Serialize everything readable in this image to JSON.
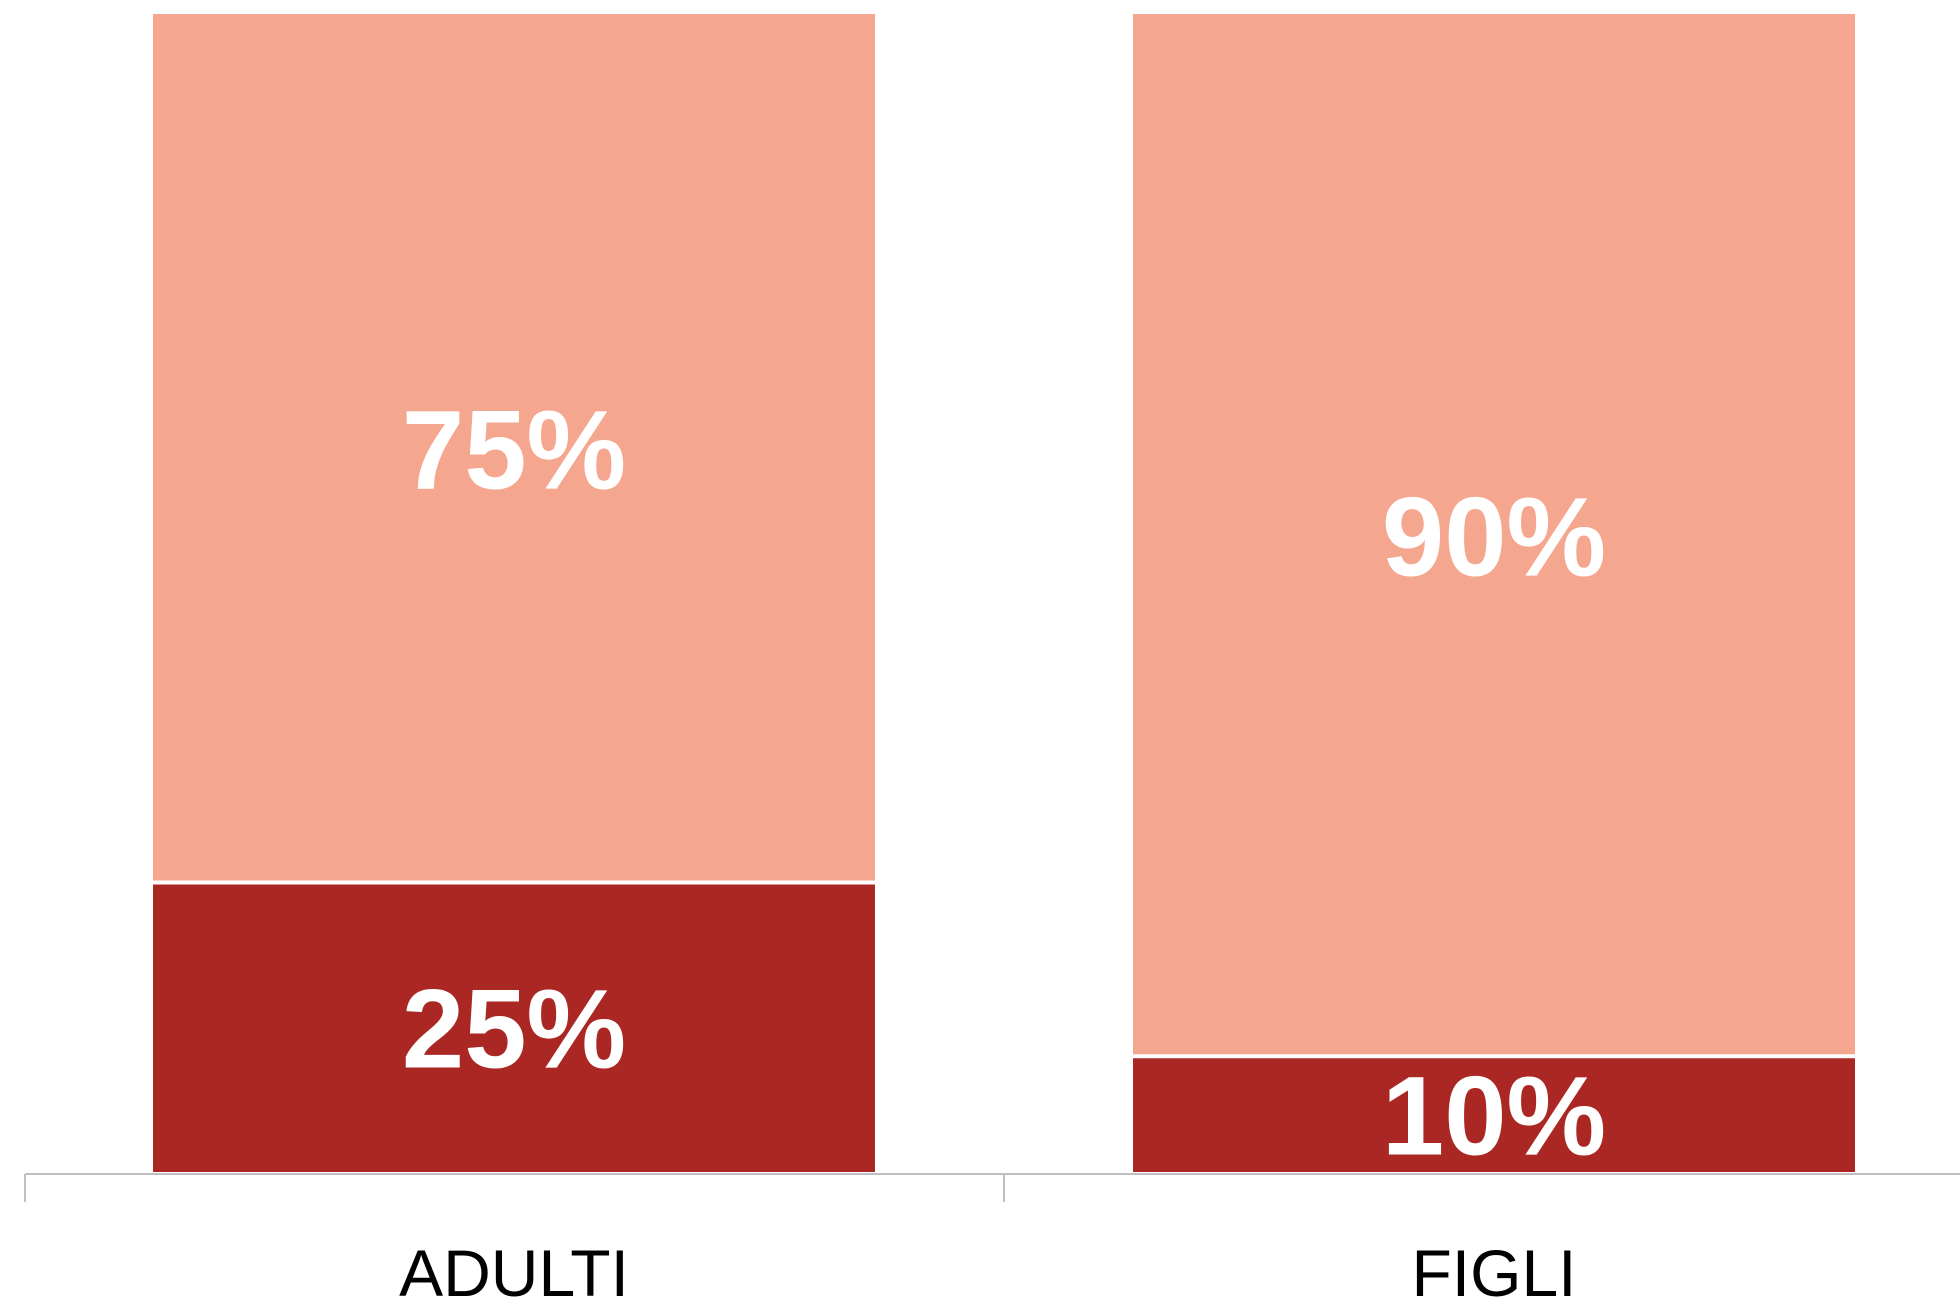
{
  "chart_data": {
    "type": "bar",
    "stacked": true,
    "categories": [
      "ADULTI",
      "FIGLI"
    ],
    "series": [
      {
        "values": [
          25,
          10
        ],
        "labels": [
          "25%",
          "10%"
        ],
        "color": "#AB2723"
      },
      {
        "values": [
          75,
          90
        ],
        "labels": [
          "75%",
          "90%"
        ],
        "color": "#F5A68F"
      }
    ],
    "ylim": [
      0,
      100
    ],
    "grid": false,
    "legend": "none",
    "axis_color": "#BFBFBF"
  }
}
